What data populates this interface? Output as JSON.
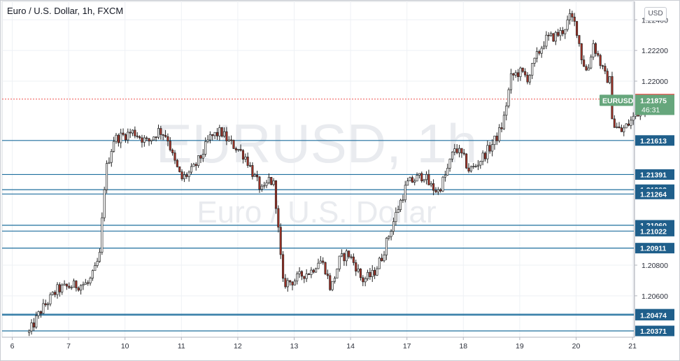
{
  "header": {
    "title": "Euro / U.S. Dollar, 1h, FXCM",
    "currency": "USD"
  },
  "watermark": {
    "symbol": "EURUSD, 1h",
    "description": "Euro / U.S. Dollar"
  },
  "colors": {
    "up": "#ffffff",
    "down": "#a93226",
    "wick": "#222222",
    "level_line": "#1f6f9e",
    "level_badge": "#1f5f8b",
    "ask_badge": "#ef5350",
    "last_badge": "#66a67c",
    "grid": "#eef1f5"
  },
  "chart_data": {
    "type": "candlestick",
    "title": "Euro / U.S. Dollar, 1h, FXCM",
    "ylim": [
      1.2033,
      1.2252
    ],
    "price_axis_ticks": [
      "1.22400",
      "1.22200",
      "1.22000",
      "1.20800",
      "1.20600"
    ],
    "x_tick_labels": [
      "6",
      "7",
      "10",
      "11",
      "12",
      "13",
      "14",
      "17",
      "18",
      "19",
      "20",
      "21"
    ],
    "grid": true,
    "support_resistance_levels": [
      "1.21613",
      "1.21391",
      "1.21292",
      "1.21264",
      "1.21060",
      "1.21022",
      "1.20911",
      "1.20480",
      "1.20474",
      "1.20371"
    ],
    "ask_price": "1.21883",
    "last_price": {
      "symbol": "EURUSD",
      "value": "1.21875",
      "countdown": "46:31"
    },
    "price_path": [
      [
        6.3,
        1.2036
      ],
      [
        6.5,
        1.205
      ],
      [
        6.8,
        1.2064
      ],
      [
        7.0,
        1.2066
      ],
      [
        7.15,
        1.2067
      ],
      [
        7.35,
        1.2068
      ],
      [
        7.45,
        1.2075
      ],
      [
        7.55,
        1.2086
      ],
      [
        7.65,
        1.214
      ],
      [
        7.8,
        1.2162
      ],
      [
        8.0,
        1.2165
      ],
      [
        8.15,
        1.2167
      ],
      [
        8.4,
        1.216
      ],
      [
        8.6,
        1.2168
      ],
      [
        8.75,
        1.2164
      ],
      [
        8.85,
        1.215
      ],
      [
        9.0,
        1.2136
      ],
      [
        9.2,
        1.2142
      ],
      [
        9.35,
        1.2151
      ],
      [
        9.5,
        1.2163
      ],
      [
        9.7,
        1.2167
      ],
      [
        9.85,
        1.216
      ],
      [
        10.0,
        1.2156
      ],
      [
        10.15,
        1.215
      ],
      [
        10.3,
        1.2137
      ],
      [
        10.45,
        1.2127
      ],
      [
        10.55,
        1.2136
      ],
      [
        10.65,
        1.2132
      ],
      [
        10.8,
        1.2068
      ],
      [
        11.0,
        1.207
      ],
      [
        11.15,
        1.2074
      ],
      [
        11.3,
        1.2076
      ],
      [
        11.45,
        1.2084
      ],
      [
        11.55,
        1.2078
      ],
      [
        11.65,
        1.2064
      ],
      [
        11.8,
        1.2083
      ],
      [
        11.95,
        1.2088
      ],
      [
        12.1,
        1.2079
      ],
      [
        12.2,
        1.207
      ],
      [
        12.4,
        1.2074
      ],
      [
        12.55,
        1.2085
      ],
      [
        12.7,
        1.2102
      ],
      [
        12.85,
        1.2118
      ],
      [
        13.0,
        1.2133
      ],
      [
        13.15,
        1.2136
      ],
      [
        13.3,
        1.2139
      ],
      [
        13.4,
        1.2132
      ],
      [
        13.55,
        1.2128
      ],
      [
        13.7,
        1.214
      ],
      [
        13.85,
        1.2157
      ],
      [
        14.0,
        1.215
      ],
      [
        14.1,
        1.2142
      ],
      [
        14.2,
        1.2144
      ],
      [
        14.35,
        1.2151
      ],
      [
        14.5,
        1.2158
      ],
      [
        14.6,
        1.2164
      ],
      [
        14.7,
        1.2172
      ],
      [
        14.85,
        1.2203
      ],
      [
        15.0,
        1.2206
      ],
      [
        15.15,
        1.2202
      ],
      [
        15.3,
        1.2216
      ],
      [
        15.45,
        1.2227
      ],
      [
        15.6,
        1.2229
      ],
      [
        15.75,
        1.2232
      ],
      [
        15.9,
        1.2242
      ],
      [
        16.0,
        1.2236
      ],
      [
        16.1,
        1.2215
      ],
      [
        16.2,
        1.2205
      ],
      [
        16.3,
        1.2225
      ],
      [
        16.4,
        1.2215
      ],
      [
        16.5,
        1.2204
      ],
      [
        16.6,
        1.22
      ],
      [
        16.65,
        1.2172
      ],
      [
        16.8,
        1.2167
      ],
      [
        16.95,
        1.2173
      ],
      [
        17.1,
        1.218
      ],
      [
        17.25,
        1.2183
      ]
    ]
  }
}
